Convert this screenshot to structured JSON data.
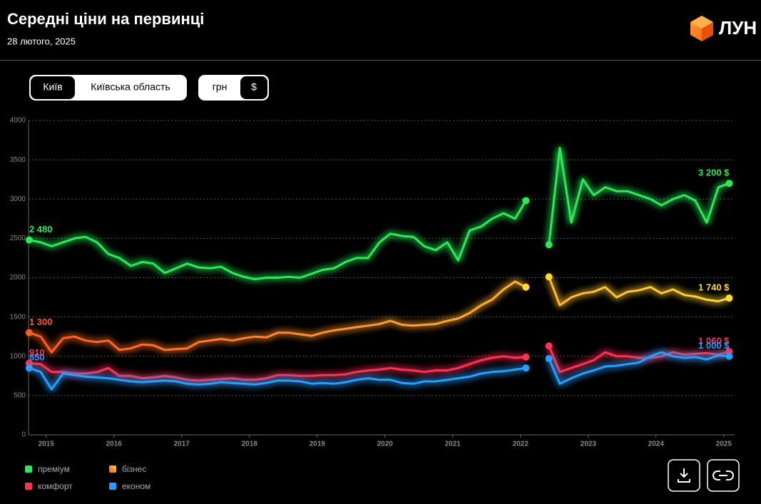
{
  "header": {
    "title": "Середні ціни на первинці",
    "subtitle": "28 лютого, 2025",
    "logo": "ЛУН"
  },
  "controls": {
    "region": [
      "Київ",
      "Київська область"
    ],
    "currency": [
      "грн",
      "$"
    ]
  },
  "chart_data": {
    "type": "line",
    "x": [
      2014.75,
      2014.92,
      2015.08,
      2015.25,
      2015.42,
      2015.58,
      2015.75,
      2015.92,
      2016.08,
      2016.25,
      2016.42,
      2016.58,
      2016.75,
      2016.92,
      2017.08,
      2017.25,
      2017.42,
      2017.58,
      2017.75,
      2017.92,
      2018.08,
      2018.25,
      2018.42,
      2018.58,
      2018.75,
      2018.92,
      2019.08,
      2019.25,
      2019.42,
      2019.58,
      2019.75,
      2019.92,
      2020.08,
      2020.25,
      2020.42,
      2020.58,
      2020.75,
      2020.92,
      2021.08,
      2021.25,
      2021.42,
      2021.58,
      2021.75,
      2021.92,
      2022.08,
      2022.25,
      2022.42,
      2022.58,
      2022.75,
      2022.92,
      2023.08,
      2023.25,
      2023.42,
      2023.58,
      2023.75,
      2023.92,
      2024.08,
      2024.25,
      2024.42,
      2024.58,
      2024.75,
      2024.92,
      2025.08
    ],
    "series": [
      {
        "name": "преміум",
        "color": "#2ee85a",
        "values": [
          2480,
          2450,
          2400,
          2450,
          2500,
          2520,
          2450,
          2300,
          2250,
          2150,
          2200,
          2180,
          2060,
          2120,
          2180,
          2130,
          2120,
          2140,
          2060,
          2010,
          1980,
          2000,
          2000,
          2010,
          2000,
          2050,
          2100,
          2120,
          2200,
          2250,
          2250,
          2450,
          2560,
          2530,
          2520,
          2400,
          2350,
          2450,
          2220,
          2600,
          2650,
          2750,
          2820,
          2750,
          2980,
          null,
          2420,
          3650,
          2700,
          3250,
          3050,
          3150,
          3100,
          3100,
          3050,
          3000,
          2920,
          3000,
          3050,
          2980,
          2700,
          3150,
          3200
        ],
        "value_labels": [
          "2 480",
          null,
          null,
          null,
          null,
          null,
          null,
          null,
          null,
          null,
          null,
          null,
          null,
          null,
          null,
          null,
          null,
          null,
          null,
          null,
          null,
          null,
          null,
          null,
          null,
          null,
          null,
          null,
          null,
          null,
          null,
          null,
          null,
          null,
          null,
          null,
          null,
          null,
          null,
          null,
          null,
          null,
          null,
          null,
          null,
          null,
          null,
          null,
          null,
          null,
          null,
          null,
          null,
          null,
          null,
          null,
          null,
          null,
          null,
          null,
          null,
          null,
          "3 200 $"
        ]
      },
      {
        "name": "бізнес",
        "color": "#ffb030",
        "gradient": [
          "#ff5a2a",
          "#ffd83a"
        ],
        "values": [
          1300,
          1250,
          1050,
          1230,
          1250,
          1200,
          1180,
          1200,
          1080,
          1100,
          1150,
          1140,
          1080,
          1090,
          1100,
          1180,
          1200,
          1220,
          1200,
          1230,
          1250,
          1240,
          1300,
          1300,
          1280,
          1260,
          1300,
          1330,
          1350,
          1370,
          1390,
          1410,
          1450,
          1400,
          1390,
          1400,
          1410,
          1450,
          1480,
          1550,
          1650,
          1720,
          1850,
          1950,
          1880,
          null,
          2010,
          1650,
          1750,
          1800,
          1820,
          1880,
          1750,
          1820,
          1840,
          1880,
          1800,
          1850,
          1780,
          1760,
          1720,
          1700,
          1740
        ],
        "value_labels": [
          "1 300",
          null,
          null,
          null,
          null,
          null,
          null,
          null,
          null,
          null,
          null,
          null,
          null,
          null,
          null,
          null,
          null,
          null,
          null,
          null,
          null,
          null,
          null,
          null,
          null,
          null,
          null,
          null,
          null,
          null,
          null,
          null,
          null,
          null,
          null,
          null,
          null,
          null,
          null,
          null,
          null,
          null,
          null,
          null,
          null,
          null,
          null,
          null,
          null,
          null,
          null,
          null,
          null,
          null,
          null,
          null,
          null,
          null,
          null,
          null,
          null,
          null,
          "1 740 $"
        ]
      },
      {
        "name": "комфорт",
        "color": "#ff3352",
        "values": [
          910,
          900,
          800,
          800,
          780,
          780,
          800,
          850,
          750,
          750,
          720,
          730,
          750,
          730,
          700,
          690,
          700,
          710,
          720,
          700,
          700,
          720,
          760,
          760,
          750,
          750,
          760,
          760,
          770,
          800,
          820,
          830,
          850,
          830,
          820,
          800,
          820,
          820,
          850,
          900,
          950,
          980,
          1000,
          980,
          990,
          null,
          1130,
          800,
          850,
          900,
          950,
          1050,
          1000,
          1000,
          980,
          980,
          1000,
          1050,
          1020,
          1030,
          1040,
          1020,
          1060
        ],
        "value_labels": [
          "910",
          null,
          null,
          null,
          null,
          null,
          null,
          null,
          null,
          null,
          null,
          null,
          null,
          null,
          null,
          null,
          null,
          null,
          null,
          null,
          null,
          null,
          null,
          null,
          null,
          null,
          null,
          null,
          null,
          null,
          null,
          null,
          null,
          null,
          null,
          null,
          null,
          null,
          null,
          null,
          null,
          null,
          null,
          null,
          null,
          null,
          null,
          null,
          null,
          null,
          null,
          null,
          null,
          null,
          null,
          null,
          null,
          null,
          null,
          null,
          null,
          null,
          "1 060 $"
        ]
      },
      {
        "name": "економ",
        "color": "#2a9dff",
        "values": [
          850,
          800,
          580,
          780,
          760,
          740,
          730,
          720,
          700,
          680,
          670,
          680,
          690,
          680,
          650,
          640,
          650,
          670,
          660,
          650,
          640,
          660,
          690,
          690,
          680,
          650,
          660,
          650,
          670,
          700,
          720,
          700,
          700,
          660,
          650,
          680,
          680,
          700,
          720,
          740,
          780,
          800,
          810,
          830,
          850,
          null,
          970,
          650,
          720,
          780,
          820,
          870,
          880,
          900,
          920,
          1000,
          1050,
          1000,
          980,
          990,
          960,
          1010,
          1000
        ],
        "value_labels": [
          "850",
          null,
          null,
          null,
          null,
          null,
          null,
          null,
          null,
          null,
          null,
          null,
          null,
          null,
          null,
          null,
          null,
          null,
          null,
          null,
          null,
          null,
          null,
          null,
          null,
          null,
          null,
          null,
          null,
          null,
          null,
          null,
          null,
          null,
          null,
          null,
          null,
          null,
          null,
          null,
          null,
          null,
          null,
          null,
          null,
          null,
          null,
          null,
          null,
          null,
          null,
          null,
          null,
          null,
          null,
          null,
          null,
          null,
          null,
          null,
          null,
          null,
          "1 000 $"
        ]
      }
    ],
    "xlim": [
      2014.74,
      2025.16
    ],
    "xticks": [
      2015,
      2016,
      2017,
      2018,
      2019,
      2020,
      2021,
      2022,
      2023,
      2024,
      2025
    ],
    "ylim": [
      0,
      4000
    ],
    "yticks": [
      0,
      500,
      1000,
      1500,
      2000,
      2500,
      3000,
      3500,
      4000
    ],
    "grid": true,
    "legend": "bottom-left"
  }
}
